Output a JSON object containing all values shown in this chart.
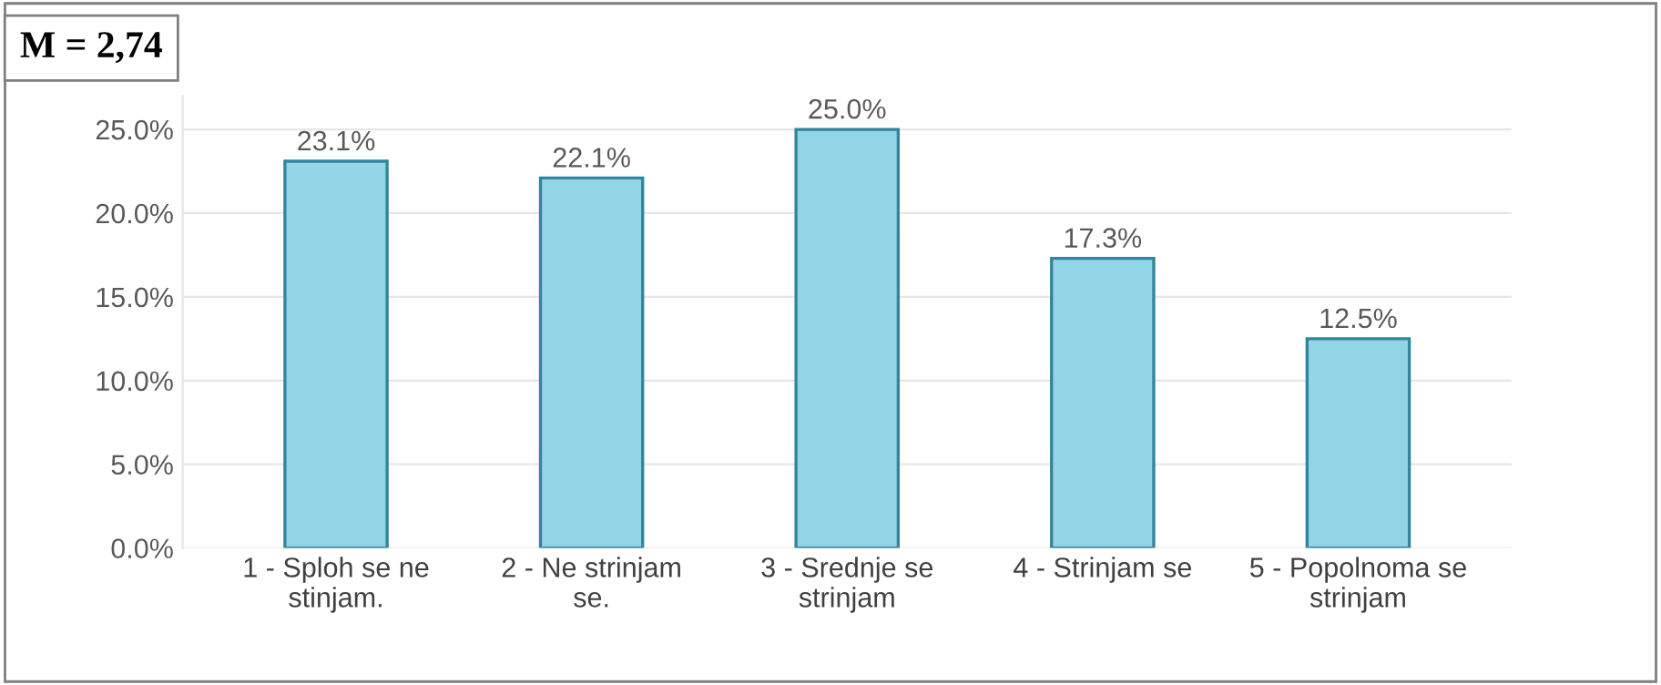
{
  "chart_data": {
    "type": "bar",
    "title": "M = 2,74",
    "categories": [
      "1 - Sploh se ne stinjam.",
      "2 - Ne strinjam se.",
      "3 - Srednje se strinjam",
      "4 - Strinjam se",
      "5 - Popolnoma se strinjam"
    ],
    "values": [
      23.1,
      22.1,
      25.0,
      17.3,
      12.5
    ],
    "value_labels": [
      "23.1%",
      "22.1%",
      "25.0%",
      "17.3%",
      "12.5%"
    ],
    "color": "#92d5e6",
    "ylim": [
      0,
      27
    ],
    "yticks": [
      {
        "value": 0,
        "label": "0.0%"
      },
      {
        "value": 5,
        "label": "5.0%"
      },
      {
        "value": 10,
        "label": "10.0%"
      },
      {
        "value": 15,
        "label": "15.0%"
      },
      {
        "value": 20,
        "label": "20.0%"
      },
      {
        "value": 25,
        "label": "25.0%"
      }
    ],
    "grid": "y"
  }
}
